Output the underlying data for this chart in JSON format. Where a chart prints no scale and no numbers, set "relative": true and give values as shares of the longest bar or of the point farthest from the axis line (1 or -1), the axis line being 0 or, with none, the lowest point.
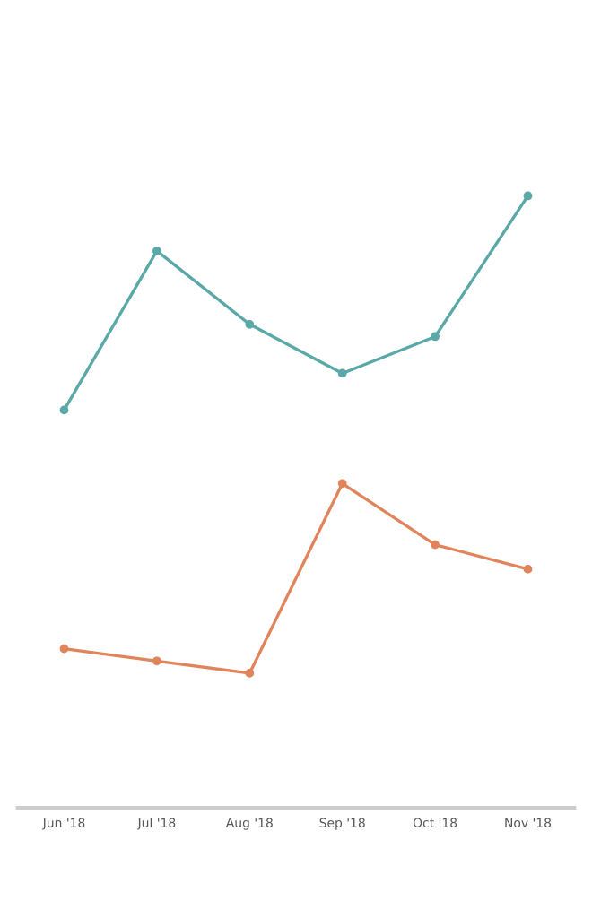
{
  "chart_data": {
    "type": "line",
    "relative": true,
    "tick_labels": "x",
    "marker": "circle",
    "line_style": "solid",
    "grid": false,
    "legend": false,
    "categories": [
      "Jun '18",
      "Jul '18",
      "Aug '18",
      "Sep '18",
      "Oct '18",
      "Nov '18"
    ],
    "series": [
      {
        "color": "#5aa8a8",
        "values": [
          0.65,
          0.91,
          0.79,
          0.71,
          0.77,
          1.0
        ]
      },
      {
        "color": "#e0845c",
        "values": [
          0.26,
          0.24,
          0.22,
          0.53,
          0.43,
          0.39
        ]
      }
    ]
  }
}
